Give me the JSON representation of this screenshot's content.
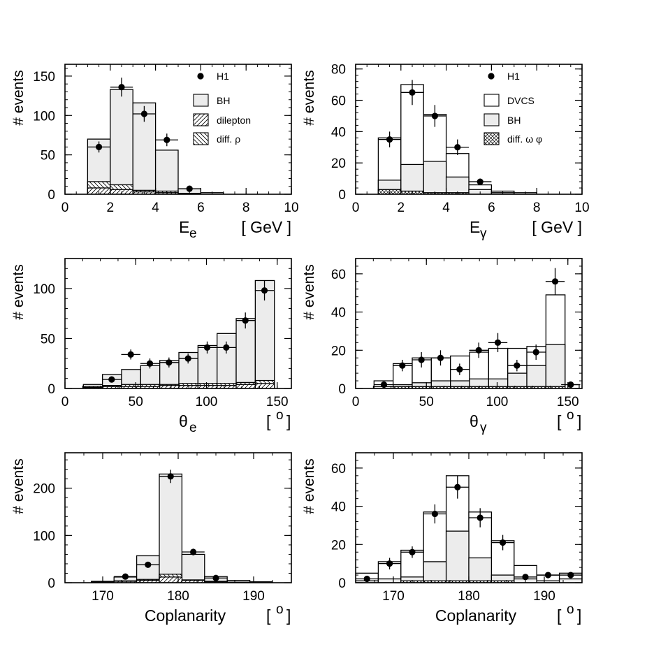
{
  "figure": {
    "title": ""
  },
  "chart_data": [
    {
      "id": "Ee",
      "type": "histogram",
      "xlim": [
        0,
        10
      ],
      "ylim": [
        0,
        165
      ],
      "xticks": [
        0,
        2,
        4,
        6,
        8,
        10
      ],
      "yticks": [
        0,
        50,
        100,
        150
      ],
      "xlabel": "E",
      "xsub": "e",
      "xunit": "[ GeV ]",
      "ylabel": "# events",
      "bins": [
        1,
        2,
        3,
        4,
        5,
        6,
        7
      ],
      "layers": [
        {
          "name": "BH",
          "fill": "#ececec",
          "values": [
            70,
            133,
            116,
            56,
            7,
            2
          ]
        },
        {
          "name": "diff. ρ",
          "fill": "hatchB",
          "values": [
            16,
            12,
            5,
            4,
            1,
            0
          ]
        },
        {
          "name": "dilepton",
          "fill": "hatchF",
          "values": [
            8,
            6,
            3,
            2,
            1,
            0
          ]
        }
      ],
      "points": {
        "name": "H1",
        "x": [
          1.5,
          2.5,
          3.5,
          4.5,
          5.5
        ],
        "y": [
          60,
          136,
          102,
          69,
          7
        ],
        "err": [
          7,
          12,
          10,
          8,
          3
        ]
      },
      "legend": [
        {
          "label": "H1",
          "kind": "point"
        },
        {
          "label": "BH",
          "kind": "#ececec"
        },
        {
          "label": "dilepton",
          "kind": "hatchF"
        },
        {
          "label": "diff. ρ",
          "kind": "hatchB"
        }
      ]
    },
    {
      "id": "Egamma",
      "type": "histogram",
      "xlim": [
        0,
        10
      ],
      "ylim": [
        0,
        83
      ],
      "xticks": [
        0,
        2,
        4,
        6,
        8,
        10
      ],
      "yticks": [
        0,
        20,
        40,
        60,
        80
      ],
      "xlabel": "E",
      "xsub": "γ",
      "xunit": "[ GeV ]",
      "ylabel": "# events",
      "bins": [
        1,
        2,
        3,
        4,
        5,
        6,
        7,
        8,
        9
      ],
      "layers": [
        {
          "name": "DVCS",
          "fill": "#ffffff",
          "values": [
            36,
            70,
            51,
            26,
            6,
            2,
            1,
            0
          ]
        },
        {
          "name": "BH",
          "fill": "#ececec",
          "values": [
            9,
            19,
            21,
            11,
            3,
            1,
            0,
            0
          ]
        },
        {
          "name": "diff. ω φ",
          "fill": "hatchX",
          "values": [
            3,
            2,
            1,
            1,
            0,
            0,
            0,
            0
          ]
        }
      ],
      "points": {
        "name": "H1",
        "x": [
          1.5,
          2.5,
          3.5,
          4.5,
          5.5
        ],
        "y": [
          35,
          65,
          50,
          30,
          8
        ],
        "err": [
          5,
          8,
          7,
          5,
          2
        ]
      },
      "legend": [
        {
          "label": "H1",
          "kind": "point"
        },
        {
          "label": "DVCS",
          "kind": "#ffffff"
        },
        {
          "label": "BH",
          "kind": "#ececec"
        },
        {
          "label": "diff. ω φ",
          "kind": "hatchX"
        }
      ]
    },
    {
      "id": "thetae",
      "type": "histogram",
      "xlim": [
        0,
        160
      ],
      "ylim": [
        0,
        130
      ],
      "xticks": [
        0,
        50,
        100,
        150
      ],
      "yticks": [
        0,
        50,
        100
      ],
      "xlabel": "θ",
      "xsub": "e",
      "xunit": "[ o ]",
      "ylabel": "# events",
      "bins": [
        13,
        26.5,
        40,
        53.5,
        67,
        80.5,
        94,
        107.5,
        121,
        134.5,
        148
      ],
      "layers": [
        {
          "name": "BH",
          "fill": "#ececec",
          "values": [
            4,
            14,
            19,
            23,
            28,
            36,
            43,
            55,
            70,
            108
          ]
        },
        {
          "name": "diff. ρ",
          "fill": "hatchB",
          "values": [
            2,
            3,
            4,
            4,
            4,
            5,
            5,
            5,
            6,
            8
          ]
        },
        {
          "name": "dilepton",
          "fill": "hatchF",
          "values": [
            1,
            2,
            2,
            2,
            3,
            3,
            3,
            3,
            4,
            5
          ]
        }
      ],
      "points": {
        "name": "H1",
        "x": [
          33,
          46.5,
          60,
          73.5,
          87,
          100.5,
          114,
          127.5,
          141
        ],
        "y": [
          9,
          34,
          25,
          26,
          30,
          41,
          41,
          68,
          98
        ],
        "err": [
          3,
          5,
          5,
          5,
          5,
          6,
          6,
          8,
          10
        ]
      },
      "legend": []
    },
    {
      "id": "thetagamma",
      "type": "histogram",
      "xlim": [
        0,
        160
      ],
      "ylim": [
        0,
        68
      ],
      "xticks": [
        0,
        50,
        100,
        150
      ],
      "yticks": [
        0,
        20,
        40,
        60
      ],
      "xlabel": "θ",
      "xsub": "γ",
      "xunit": "[ o ]",
      "ylabel": "# events",
      "bins": [
        13,
        26.5,
        40,
        53.5,
        67,
        80.5,
        94,
        107.5,
        121,
        134.5,
        148,
        158
      ],
      "layers": [
        {
          "name": "DVCS",
          "fill": "#ffffff",
          "values": [
            4,
            13,
            16,
            16,
            17,
            19,
            21,
            21,
            22,
            49,
            2
          ]
        },
        {
          "name": "BH",
          "fill": "#ececec",
          "values": [
            1,
            2,
            3,
            4,
            4,
            5,
            5,
            8,
            12,
            23,
            0
          ]
        },
        {
          "name": "diff. ω φ",
          "fill": "hatchX",
          "values": [
            0,
            1,
            1,
            1,
            1,
            1,
            1,
            1,
            1,
            1,
            0
          ]
        }
      ],
      "points": {
        "name": "H1",
        "x": [
          20,
          33,
          46.5,
          60,
          73.5,
          87,
          100.5,
          114,
          127.5,
          141,
          152
        ],
        "y": [
          2,
          12,
          15,
          16,
          10,
          20,
          24,
          12,
          19,
          56,
          2
        ],
        "err": [
          1,
          3,
          4,
          4,
          3,
          4,
          5,
          3,
          4,
          7,
          1
        ]
      },
      "legend": []
    },
    {
      "id": "coplan1",
      "type": "histogram",
      "xlim": [
        165,
        195
      ],
      "ylim": [
        0,
        275
      ],
      "xticks": [
        170,
        180,
        190
      ],
      "yticks": [
        0,
        100,
        200
      ],
      "xlabel": "Coplanarity",
      "xsub": "",
      "xunit": "[ o ]",
      "ylabel": "# events",
      "bins": [
        168.5,
        171.5,
        174.5,
        177.5,
        180.5,
        183.5,
        186.5,
        189.5,
        192.5
      ],
      "layers": [
        {
          "name": "BH",
          "fill": "#ececec",
          "values": [
            3,
            12,
            57,
            230,
            60,
            13,
            5,
            2
          ]
        },
        {
          "name": "diff. ρ",
          "fill": "hatchB",
          "values": [
            2,
            4,
            7,
            18,
            6,
            3,
            1,
            0
          ]
        },
        {
          "name": "dilepton",
          "fill": "hatchF",
          "values": [
            1,
            3,
            5,
            12,
            5,
            2,
            1,
            0
          ]
        }
      ],
      "points": {
        "name": "H1",
        "x": [
          173,
          176,
          179,
          182,
          185
        ],
        "y": [
          13,
          38,
          225,
          65,
          10
        ],
        "err": [
          3,
          5,
          14,
          7,
          3
        ]
      },
      "legend": []
    },
    {
      "id": "coplan2",
      "type": "histogram",
      "xlim": [
        165,
        195
      ],
      "ylim": [
        0,
        68
      ],
      "xticks": [
        170,
        180,
        190
      ],
      "yticks": [
        0,
        20,
        40,
        60
      ],
      "xlabel": "Coplanarity",
      "xsub": "",
      "xunit": "[ o ]",
      "ylabel": "# events",
      "bins": [
        165,
        168,
        171,
        174,
        177,
        180,
        183,
        186,
        189,
        192,
        195
      ],
      "layers": [
        {
          "name": "DVCS",
          "fill": "#ffffff",
          "values": [
            5,
            11,
            17,
            37,
            56,
            37,
            22,
            9,
            4,
            5
          ]
        },
        {
          "name": "BH",
          "fill": "#ececec",
          "values": [
            1,
            2,
            3,
            11,
            27,
            13,
            4,
            2,
            1,
            2
          ]
        },
        {
          "name": "diff. ω φ",
          "fill": "hatchX",
          "values": [
            0,
            0,
            1,
            1,
            1,
            1,
            1,
            0,
            0,
            0
          ]
        }
      ],
      "points": {
        "name": "H1",
        "x": [
          166.5,
          169.5,
          172.5,
          175.5,
          178.5,
          181.5,
          184.5,
          187.5,
          190.5,
          193.5
        ],
        "y": [
          2,
          10,
          16,
          36,
          50,
          34,
          21,
          3,
          4,
          4
        ],
        "err": [
          1,
          3,
          3,
          5,
          6,
          5,
          4,
          1,
          1,
          1
        ]
      },
      "legend": []
    }
  ]
}
